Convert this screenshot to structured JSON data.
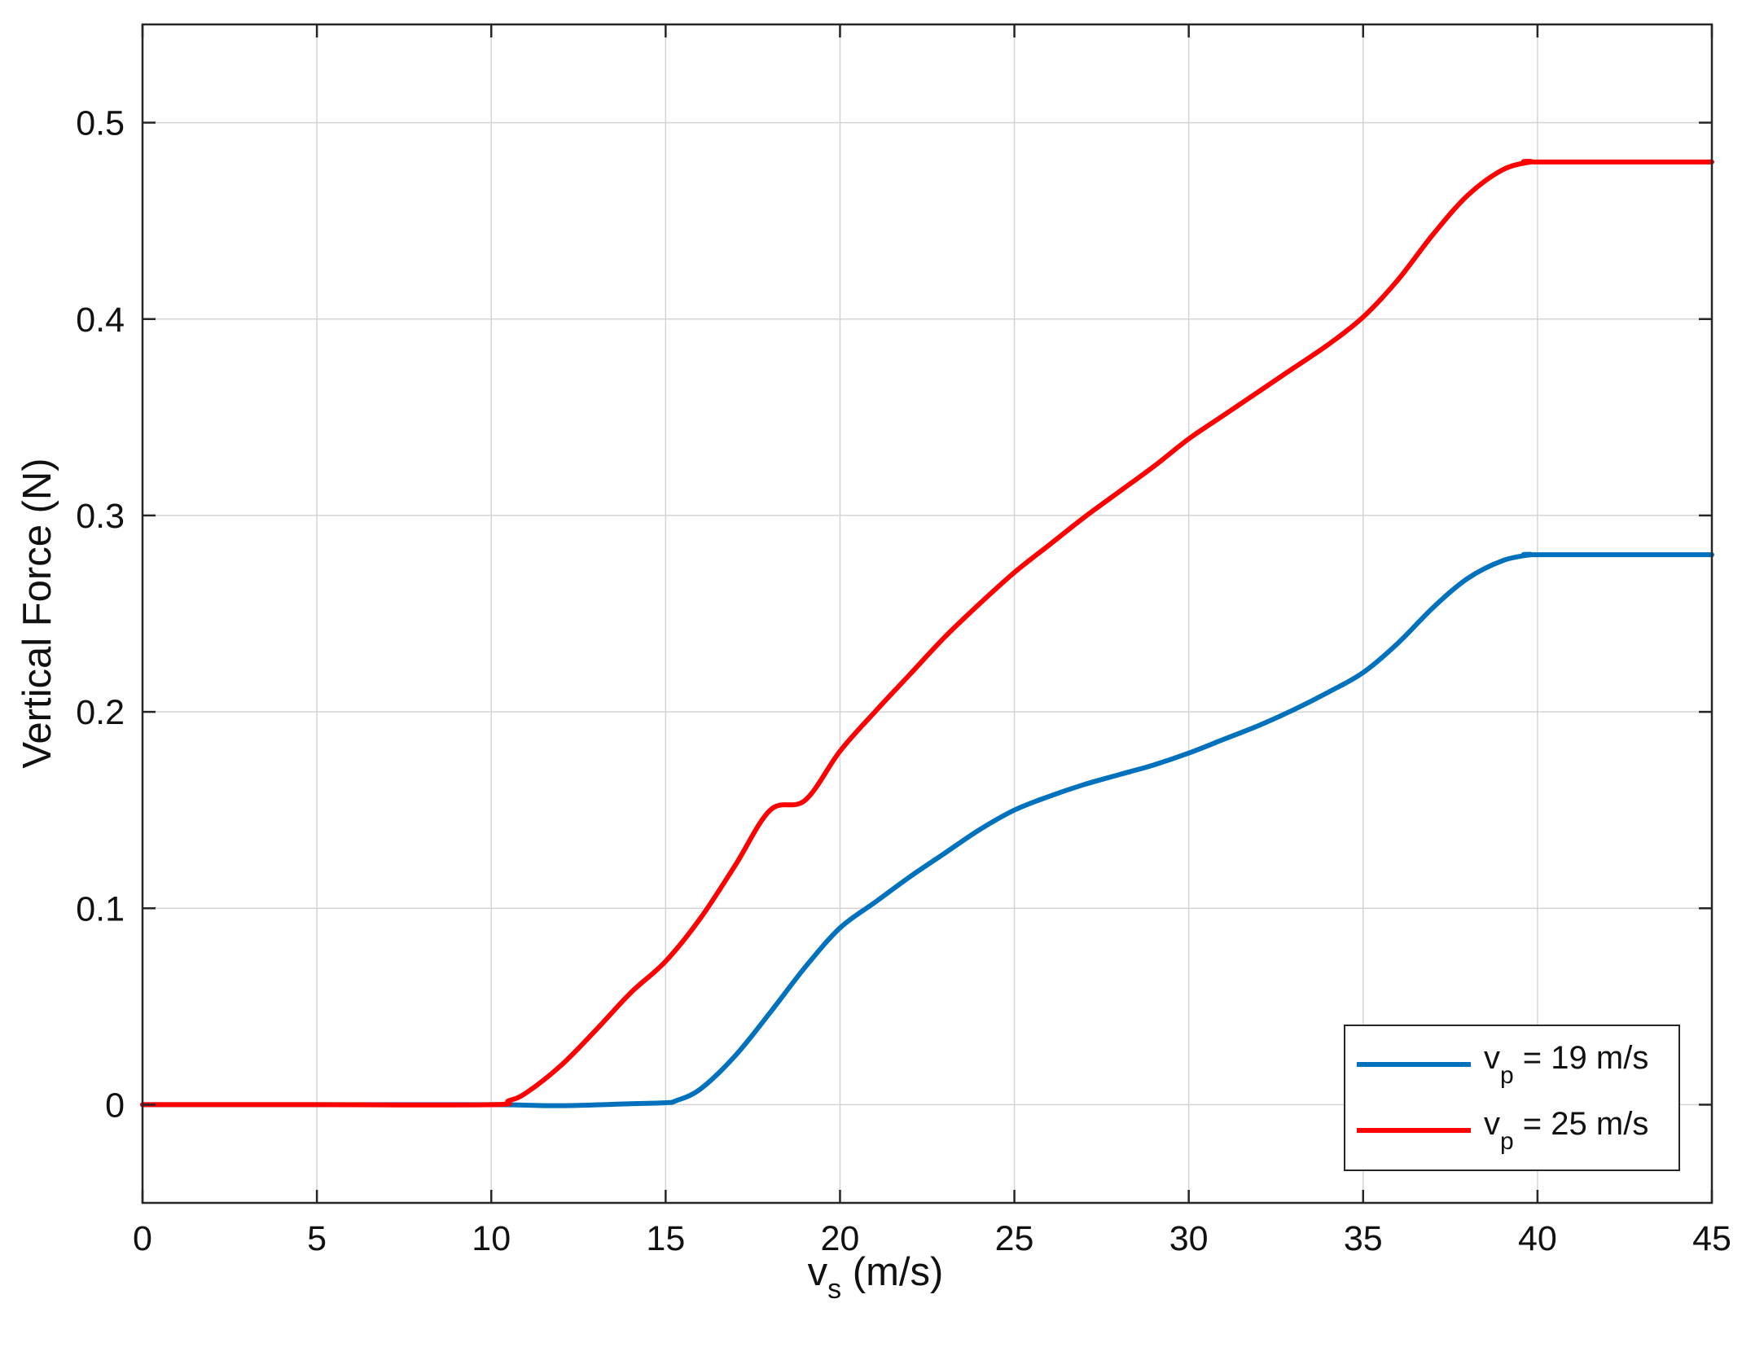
{
  "chart_data": {
    "type": "line",
    "xlabel": "v",
    "xlabel_sub": "s",
    "xlabel_unit": " (m/s)",
    "ylabel": "Vertical Force (N)",
    "xlim": [
      0,
      45
    ],
    "ylim": [
      -0.05,
      0.55
    ],
    "xticks": [
      0,
      5,
      10,
      15,
      20,
      25,
      30,
      35,
      40,
      45
    ],
    "yticks": [
      0,
      0.1,
      0.2,
      0.3,
      0.4,
      0.5
    ],
    "grid": true,
    "legend_position": "bottom-right",
    "series": [
      {
        "name": "v_p = 19 m/s",
        "legend_main": "v",
        "legend_sub": "p",
        "legend_rest": " = 19 m/s",
        "color": "#0072BD",
        "x": [
          0,
          5,
          10,
          12,
          14,
          15,
          15.3,
          16,
          17,
          18,
          19,
          20,
          21,
          22,
          23,
          24,
          25,
          26,
          27,
          28,
          29,
          30,
          31,
          32,
          33,
          34,
          35,
          36,
          37,
          38,
          39,
          39.8,
          40,
          45
        ],
        "y": [
          0,
          0,
          0,
          -0.0005,
          0.0005,
          0.001,
          0.002,
          0.008,
          0.025,
          0.047,
          0.07,
          0.09,
          0.103,
          0.116,
          0.128,
          0.14,
          0.15,
          0.157,
          0.163,
          0.168,
          0.173,
          0.179,
          0.186,
          0.193,
          0.201,
          0.21,
          0.22,
          0.235,
          0.253,
          0.268,
          0.277,
          0.28,
          0.28,
          0.28
        ]
      },
      {
        "name": "v_p = 25 m/s",
        "legend_main": "v",
        "legend_sub": "p",
        "legend_rest": " = 25 m/s",
        "color": "#FF0000",
        "x": [
          0,
          5,
          10,
          10.5,
          11,
          12,
          13,
          14,
          15,
          16,
          17,
          18,
          19,
          20,
          21,
          22,
          23,
          24,
          25,
          26,
          27,
          28,
          29,
          30,
          31,
          32,
          33,
          34,
          35,
          36,
          37,
          38,
          39,
          39.8,
          40,
          45
        ],
        "y": [
          0,
          0,
          0,
          0.002,
          0.006,
          0.02,
          0.038,
          0.057,
          0.073,
          0.095,
          0.122,
          0.15,
          0.155,
          0.18,
          0.2,
          0.219,
          0.238,
          0.255,
          0.271,
          0.285,
          0.299,
          0.312,
          0.325,
          0.339,
          0.351,
          0.363,
          0.375,
          0.387,
          0.401,
          0.42,
          0.443,
          0.463,
          0.476,
          0.48,
          0.48,
          0.48
        ]
      }
    ]
  }
}
